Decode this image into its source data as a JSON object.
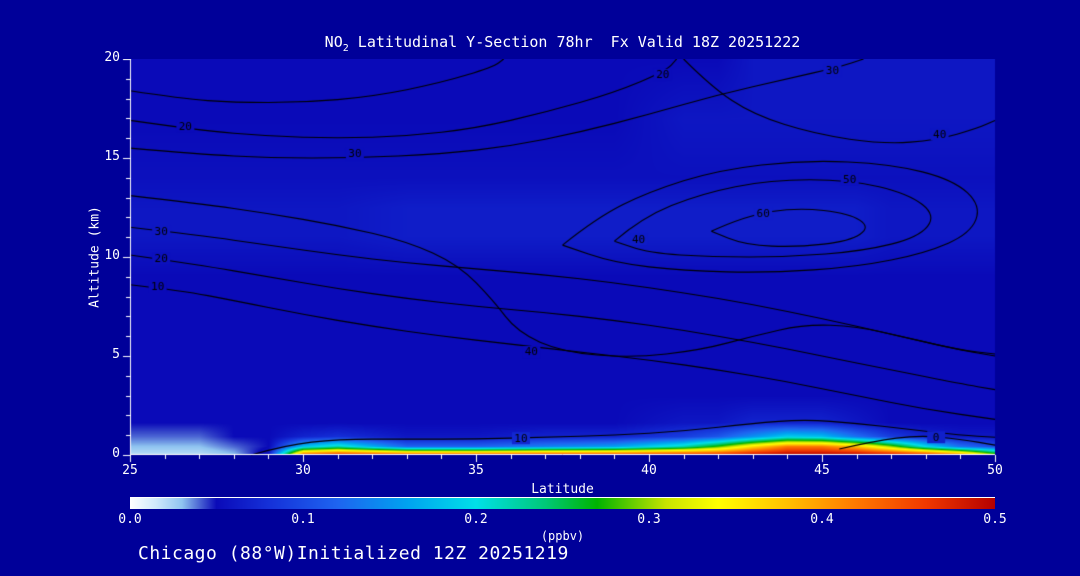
{
  "page": {
    "background": "#000099",
    "title_prefix": "NO",
    "title_sub": "2",
    "title_rest": " Latitudinal Y-Section 78hr  Fx Valid 18Z 20251222",
    "footer": "Chicago (88°W)Initialized 12Z 20251219"
  },
  "chart_data": {
    "type": "heatmap",
    "title": "NO2 Latitudinal Y-Section 78hr Fx Valid 18Z 20251222",
    "xlabel": "Latitude",
    "ylabel": "Altitude (km)",
    "xlim": [
      25,
      50
    ],
    "ylim": [
      0,
      20
    ],
    "xticks": [
      25,
      30,
      35,
      40,
      45,
      50
    ],
    "yticks": [
      0,
      5,
      10,
      15,
      20
    ],
    "grid": false,
    "contour_color": "#000000",
    "colorbar": {
      "label": "(ppbv)",
      "min": 0.0,
      "max": 0.5,
      "ticks": [
        "0.0",
        "0.1",
        "0.2",
        "0.3",
        "0.4",
        "0.5"
      ],
      "stops": [
        [
          0.0,
          "#ffffff"
        ],
        [
          0.015,
          "#cfe9fb"
        ],
        [
          0.03,
          "#8fc4f0"
        ],
        [
          0.05,
          "#0a0ab8"
        ],
        [
          0.08,
          "#1530d8"
        ],
        [
          0.12,
          "#1e64f0"
        ],
        [
          0.16,
          "#00a2f0"
        ],
        [
          0.2,
          "#00e0e8"
        ],
        [
          0.24,
          "#00c878"
        ],
        [
          0.27,
          "#00b400"
        ],
        [
          0.31,
          "#c8e400"
        ],
        [
          0.34,
          "#ffff00"
        ],
        [
          0.38,
          "#ffc000"
        ],
        [
          0.42,
          "#ff7800"
        ],
        [
          0.46,
          "#f03800"
        ],
        [
          0.5,
          "#b40000"
        ]
      ]
    },
    "field": {
      "units": "ppbv",
      "lats": [
        25,
        27,
        28,
        29,
        30,
        31,
        33,
        35,
        37,
        39,
        41,
        42,
        43,
        44,
        45,
        46,
        47,
        48,
        49,
        50
      ],
      "alts": [
        0,
        0.4,
        0.9,
        1.6,
        3,
        6,
        9,
        11,
        12.5,
        14,
        17,
        20
      ],
      "values": [
        [
          0.02,
          0.02,
          0.03,
          0.06,
          0.44,
          0.47,
          0.45,
          0.45,
          0.46,
          0.46,
          0.47,
          0.47,
          0.49,
          0.5,
          0.5,
          0.5,
          0.49,
          0.47,
          0.42,
          0.3
        ],
        [
          0.03,
          0.03,
          0.04,
          0.05,
          0.18,
          0.22,
          0.12,
          0.12,
          0.14,
          0.16,
          0.22,
          0.28,
          0.36,
          0.42,
          0.42,
          0.38,
          0.3,
          0.2,
          0.13,
          0.1
        ],
        [
          0.04,
          0.04,
          0.05,
          0.05,
          0.07,
          0.08,
          0.06,
          0.06,
          0.07,
          0.07,
          0.09,
          0.11,
          0.15,
          0.19,
          0.18,
          0.13,
          0.09,
          0.07,
          0.06,
          0.06
        ],
        [
          0.05,
          0.05,
          0.05,
          0.05,
          0.05,
          0.05,
          0.05,
          0.05,
          0.05,
          0.05,
          0.06,
          0.06,
          0.07,
          0.07,
          0.07,
          0.06,
          0.05,
          0.05,
          0.05,
          0.05
        ],
        [
          0.05,
          0.05,
          0.05,
          0.05,
          0.05,
          0.05,
          0.05,
          0.05,
          0.05,
          0.05,
          0.05,
          0.05,
          0.05,
          0.05,
          0.05,
          0.05,
          0.05,
          0.05,
          0.05,
          0.05
        ],
        [
          0.05,
          0.05,
          0.05,
          0.05,
          0.05,
          0.05,
          0.05,
          0.05,
          0.05,
          0.05,
          0.05,
          0.05,
          0.05,
          0.05,
          0.05,
          0.05,
          0.05,
          0.05,
          0.05,
          0.05
        ],
        [
          0.05,
          0.05,
          0.05,
          0.05,
          0.05,
          0.05,
          0.05,
          0.05,
          0.05,
          0.05,
          0.05,
          0.05,
          0.05,
          0.05,
          0.05,
          0.05,
          0.05,
          0.05,
          0.05,
          0.05
        ],
        [
          0.06,
          0.06,
          0.06,
          0.06,
          0.06,
          0.06,
          0.065,
          0.065,
          0.065,
          0.065,
          0.065,
          0.065,
          0.065,
          0.065,
          0.065,
          0.065,
          0.06,
          0.06,
          0.06,
          0.06
        ],
        [
          0.06,
          0.06,
          0.06,
          0.06,
          0.06,
          0.06,
          0.065,
          0.065,
          0.065,
          0.065,
          0.065,
          0.065,
          0.065,
          0.065,
          0.065,
          0.065,
          0.06,
          0.06,
          0.06,
          0.06
        ],
        [
          0.055,
          0.055,
          0.055,
          0.055,
          0.055,
          0.055,
          0.055,
          0.055,
          0.055,
          0.055,
          0.055,
          0.055,
          0.055,
          0.055,
          0.055,
          0.055,
          0.055,
          0.055,
          0.055,
          0.055
        ],
        [
          0.05,
          0.05,
          0.05,
          0.05,
          0.05,
          0.05,
          0.05,
          0.05,
          0.05,
          0.05,
          0.06,
          0.06,
          0.06,
          0.06,
          0.06,
          0.06,
          0.06,
          0.06,
          0.06,
          0.06
        ],
        [
          0.05,
          0.05,
          0.05,
          0.05,
          0.05,
          0.05,
          0.05,
          0.05,
          0.05,
          0.05,
          0.05,
          0.05,
          0.06,
          0.06,
          0.06,
          0.06,
          0.06,
          0.06,
          0.06,
          0.06
        ]
      ]
    },
    "contours": [
      {
        "value": 10,
        "points": [
          [
            25,
            8.6
          ],
          [
            26.5,
            8.3
          ],
          [
            28,
            7.8
          ],
          [
            30,
            7.1
          ],
          [
            32,
            6.5
          ],
          [
            34,
            6.0
          ],
          [
            36,
            5.6
          ],
          [
            38,
            5.2
          ],
          [
            40,
            4.8
          ],
          [
            42,
            4.3
          ],
          [
            44,
            3.7
          ],
          [
            46,
            3.0
          ],
          [
            48,
            2.3
          ],
          [
            50,
            1.8
          ]
        ],
        "labels": [
          [
            25.8,
            8.5
          ]
        ]
      },
      {
        "value": 20,
        "points": [
          [
            25,
            10.1
          ],
          [
            27,
            9.6
          ],
          [
            29,
            9.0
          ],
          [
            31,
            8.4
          ],
          [
            33,
            7.9
          ],
          [
            35,
            7.5
          ],
          [
            37,
            7.2
          ],
          [
            39,
            6.8
          ],
          [
            41,
            6.3
          ],
          [
            43,
            5.7
          ],
          [
            45,
            5.0
          ],
          [
            47,
            4.3
          ],
          [
            49,
            3.6
          ],
          [
            50,
            3.3
          ]
        ],
        "labels": [
          [
            25.9,
            9.9
          ]
        ]
      },
      {
        "value": 30,
        "points": [
          [
            25,
            11.5
          ],
          [
            27,
            11.1
          ],
          [
            29,
            10.6
          ],
          [
            31,
            10.1
          ],
          [
            33,
            9.7
          ],
          [
            35,
            9.4
          ],
          [
            37,
            9.1
          ],
          [
            39,
            8.7
          ],
          [
            41,
            8.2
          ],
          [
            43,
            7.6
          ],
          [
            45,
            6.9
          ],
          [
            47,
            6.1
          ],
          [
            49,
            5.3
          ],
          [
            50,
            5.0
          ]
        ],
        "labels": [
          [
            25.9,
            11.3
          ]
        ]
      },
      {
        "value": 40,
        "points": [
          [
            25,
            13.1
          ],
          [
            27,
            12.7
          ],
          [
            29,
            12.2
          ],
          [
            31,
            11.6
          ],
          [
            33,
            10.8
          ],
          [
            34.5,
            9.6
          ],
          [
            35.5,
            7.8
          ],
          [
            36.2,
            6.2
          ],
          [
            37.5,
            5.2
          ],
          [
            39.5,
            4.9
          ],
          [
            41.5,
            5.3
          ],
          [
            43,
            6.0
          ],
          [
            44.5,
            6.6
          ],
          [
            46,
            6.5
          ],
          [
            47.5,
            5.9
          ],
          [
            49,
            5.3
          ],
          [
            50,
            5.1
          ]
        ],
        "labels": [
          [
            36.6,
            5.2
          ]
        ]
      },
      {
        "value": 40,
        "points": [
          [
            41,
            20
          ],
          [
            41.8,
            18.6
          ],
          [
            43,
            17.2
          ],
          [
            44.8,
            16.2
          ],
          [
            46.8,
            15.7
          ],
          [
            48.3,
            15.9
          ],
          [
            49.5,
            16.5
          ],
          [
            50,
            16.9
          ]
        ],
        "labels": [
          [
            48.4,
            16.2
          ]
        ]
      },
      {
        "value": 40,
        "points": [
          [
            37.5,
            10.6
          ],
          [
            38.5,
            12.0
          ],
          [
            40,
            13.3
          ],
          [
            42,
            14.4
          ],
          [
            44.5,
            14.9
          ],
          [
            47,
            14.7
          ],
          [
            48.8,
            13.9
          ],
          [
            49.6,
            12.6
          ],
          [
            49.3,
            11.2
          ],
          [
            48,
            10.2
          ],
          [
            46,
            9.5
          ],
          [
            43.5,
            9.2
          ],
          [
            41,
            9.3
          ],
          [
            39,
            9.7
          ],
          [
            37.5,
            10.6
          ]
        ],
        "labels": [
          [
            39.7,
            10.9
          ]
        ]
      },
      {
        "value": 50,
        "points": [
          [
            39,
            10.8
          ],
          [
            39.8,
            12.0
          ],
          [
            41.5,
            13.2
          ],
          [
            43.5,
            13.9
          ],
          [
            45.8,
            13.9
          ],
          [
            47.5,
            13.2
          ],
          [
            48.3,
            12.1
          ],
          [
            47.8,
            11.0
          ],
          [
            46.2,
            10.3
          ],
          [
            44,
            10.0
          ],
          [
            41.8,
            10.0
          ],
          [
            40.0,
            10.2
          ],
          [
            39,
            10.8
          ]
        ],
        "labels": [
          [
            45.8,
            13.9
          ]
        ]
      },
      {
        "value": 60,
        "points": [
          [
            41.8,
            11.3
          ],
          [
            42.8,
            12.1
          ],
          [
            44.3,
            12.5
          ],
          [
            45.8,
            12.2
          ],
          [
            46.4,
            11.5
          ],
          [
            45.8,
            10.8
          ],
          [
            44.3,
            10.5
          ],
          [
            42.8,
            10.6
          ],
          [
            41.8,
            11.3
          ]
        ],
        "labels": [
          [
            43.3,
            12.2
          ]
        ]
      },
      {
        "value": 20,
        "points": [
          [
            25,
            16.9
          ],
          [
            27,
            16.4
          ],
          [
            29,
            16.1
          ],
          [
            31,
            16.0
          ],
          [
            33,
            16.1
          ],
          [
            35,
            16.5
          ],
          [
            37,
            17.3
          ],
          [
            39,
            18.3
          ],
          [
            40.5,
            19.4
          ],
          [
            40.8,
            20
          ]
        ],
        "labels": [
          [
            26.6,
            16.6
          ],
          [
            40.4,
            19.2
          ]
        ]
      },
      {
        "value": 30,
        "points": [
          [
            25,
            15.5
          ],
          [
            27,
            15.2
          ],
          [
            29,
            15.0
          ],
          [
            31.5,
            15.0
          ],
          [
            34,
            15.2
          ],
          [
            36,
            15.6
          ],
          [
            38,
            16.3
          ],
          [
            40,
            17.2
          ],
          [
            42,
            18.2
          ],
          [
            44,
            19.0
          ],
          [
            45.5,
            19.6
          ],
          [
            46.2,
            20
          ]
        ],
        "labels": [
          [
            31.5,
            15.2
          ],
          [
            45.3,
            19.4
          ]
        ]
      },
      {
        "value": 10,
        "points": [
          [
            25,
            18.4
          ],
          [
            26.5,
            18.0
          ],
          [
            28,
            17.8
          ],
          [
            30,
            17.8
          ],
          [
            32,
            18.1
          ],
          [
            34,
            18.8
          ],
          [
            35.5,
            19.6
          ],
          [
            35.8,
            20
          ]
        ],
        "labels": []
      },
      {
        "value": 10,
        "points": [
          [
            28.5,
            0
          ],
          [
            29.5,
            0.5
          ],
          [
            31,
            0.8
          ],
          [
            33,
            0.8
          ],
          [
            35,
            0.8
          ],
          [
            37,
            0.9
          ],
          [
            39,
            1.0
          ],
          [
            41,
            1.2
          ],
          [
            43,
            1.6
          ],
          [
            44.5,
            1.8
          ],
          [
            46,
            1.6
          ],
          [
            47.5,
            1.3
          ],
          [
            49,
            1.0
          ],
          [
            50,
            0.9
          ]
        ],
        "labels": [
          [
            36.3,
            0.85
          ]
        ]
      },
      {
        "value": 0,
        "points": [
          [
            45.5,
            0.3
          ],
          [
            46.5,
            0.7
          ],
          [
            47.8,
            1.0
          ],
          [
            49,
            0.8
          ],
          [
            50,
            0.5
          ]
        ],
        "labels": [
          [
            48.3,
            0.9
          ]
        ]
      }
    ]
  }
}
